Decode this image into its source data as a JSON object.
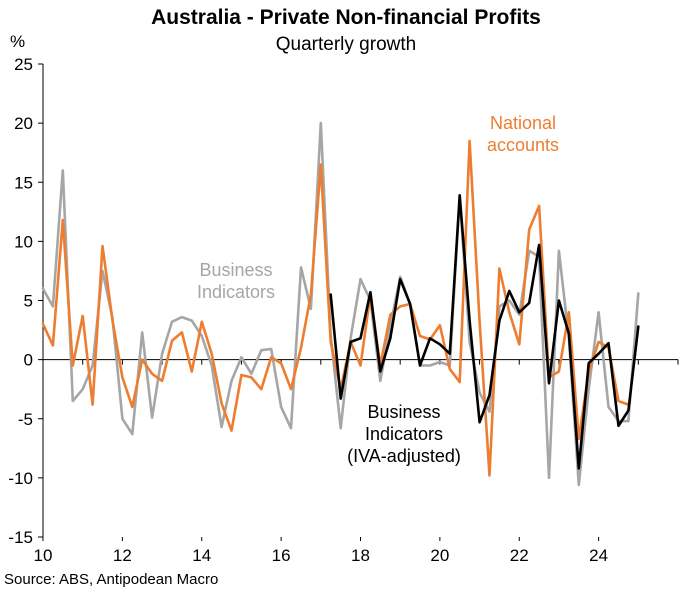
{
  "chart_data": {
    "type": "line",
    "title": "Australia - Private Non-financial Profits",
    "subtitle": "Quarterly growth",
    "ylabel": "%",
    "source": "Source: ABS, Antipodean Macro",
    "ylim": [
      -15,
      25
    ],
    "yticks": [
      -15,
      -10,
      -5,
      0,
      5,
      10,
      15,
      20,
      25
    ],
    "xlim": [
      2010.0,
      2026.0
    ],
    "xticks": [
      2010,
      2012,
      2014,
      2016,
      2018,
      2020,
      2022,
      2024
    ],
    "xtick_labels": [
      "10",
      "12",
      "14",
      "16",
      "18",
      "20",
      "22",
      "24"
    ],
    "grid": false,
    "annotations": [
      {
        "series": "business",
        "lines": [
          "Business",
          "Indicators"
        ],
        "color": "#a6a6a6"
      },
      {
        "series": "national",
        "lines": [
          "National",
          "accounts"
        ],
        "color": "#ed7d31"
      },
      {
        "series": "iva",
        "lines": [
          "Business",
          "Indicators",
          "(IVA-adjusted)"
        ],
        "color": "#000000"
      }
    ],
    "series": [
      {
        "key": "business",
        "color": "#a6a6a6",
        "x": [
          2010.0,
          2010.25,
          2010.5,
          2010.75,
          2011.0,
          2011.25,
          2011.5,
          2011.75,
          2012.0,
          2012.25,
          2012.5,
          2012.75,
          2013.0,
          2013.25,
          2013.5,
          2013.75,
          2014.0,
          2014.25,
          2014.5,
          2014.75,
          2015.0,
          2015.25,
          2015.5,
          2015.75,
          2016.0,
          2016.25,
          2016.5,
          2016.75,
          2017.0,
          2017.25,
          2017.5,
          2017.75,
          2018.0,
          2018.25,
          2018.5,
          2018.75,
          2019.0,
          2019.25,
          2019.5,
          2019.75,
          2020.0,
          2020.25,
          2020.5,
          2020.75,
          2021.0,
          2021.25,
          2021.5,
          2021.75,
          2022.0,
          2022.25,
          2022.5,
          2022.75,
          2023.0,
          2023.25,
          2023.5,
          2023.75,
          2024.0,
          2024.25,
          2024.5,
          2024.75,
          2025.0
        ],
        "y": [
          6.0,
          4.5,
          16.0,
          -3.5,
          -2.5,
          -0.5,
          7.5,
          3.5,
          -5.0,
          -6.3,
          2.3,
          -4.9,
          0.5,
          3.2,
          3.6,
          3.3,
          2.0,
          -0.5,
          -5.7,
          -1.8,
          0.2,
          -1.2,
          0.8,
          0.9,
          -4.0,
          -5.8,
          7.8,
          4.3,
          20.0,
          2.0,
          -5.8,
          1.8,
          6.8,
          5.0,
          -1.8,
          2.8,
          7.0,
          4.7,
          -0.5,
          -0.5,
          -0.2,
          -0.5,
          13.8,
          1.5,
          -2.8,
          -4.4,
          4.5,
          5.0,
          3.8,
          9.2,
          8.7,
          -10.0,
          9.2,
          1.8,
          -10.6,
          -2.5,
          4.0,
          -4.0,
          -5.2,
          -5.2,
          5.6
        ]
      },
      {
        "key": "national",
        "color": "#ed7d31",
        "x": [
          2010.0,
          2010.25,
          2010.5,
          2010.75,
          2011.0,
          2011.25,
          2011.5,
          2011.75,
          2012.0,
          2012.25,
          2012.5,
          2012.75,
          2013.0,
          2013.25,
          2013.5,
          2013.75,
          2014.0,
          2014.25,
          2014.5,
          2014.75,
          2015.0,
          2015.25,
          2015.5,
          2015.75,
          2016.0,
          2016.25,
          2016.5,
          2016.75,
          2017.0,
          2017.25,
          2017.5,
          2017.75,
          2018.0,
          2018.25,
          2018.5,
          2018.75,
          2019.0,
          2019.25,
          2019.5,
          2019.75,
          2020.0,
          2020.25,
          2020.5,
          2020.75,
          2021.0,
          2021.25,
          2021.5,
          2021.75,
          2022.0,
          2022.25,
          2022.5,
          2022.75,
          2023.0,
          2023.25,
          2023.5,
          2023.75,
          2024.0,
          2024.25,
          2024.5,
          2024.75
        ],
        "y": [
          3.0,
          1.2,
          11.8,
          -0.5,
          3.7,
          -3.8,
          9.6,
          3.3,
          -1.5,
          -4.0,
          0.0,
          -1.2,
          -1.8,
          1.6,
          2.3,
          -1.0,
          3.2,
          0.5,
          -3.7,
          -6.0,
          -1.3,
          -1.5,
          -2.5,
          0.2,
          -0.3,
          -2.5,
          1.0,
          5.5,
          16.5,
          1.5,
          -2.5,
          1.5,
          -0.5,
          5.5,
          -0.5,
          3.8,
          4.5,
          4.7,
          2.0,
          1.7,
          2.9,
          -0.8,
          -1.9,
          18.5,
          3.2,
          -9.8,
          7.7,
          4.0,
          1.3,
          11.0,
          13.0,
          -1.5,
          -1.0,
          4.0,
          -6.7,
          -1.0,
          1.5,
          1.0,
          -3.5,
          -3.8
        ]
      },
      {
        "key": "iva",
        "color": "#000000",
        "x": [
          2017.25,
          2017.5,
          2017.75,
          2018.0,
          2018.25,
          2018.5,
          2018.75,
          2019.0,
          2019.25,
          2019.5,
          2019.75,
          2020.0,
          2020.25,
          2020.5,
          2020.75,
          2021.0,
          2021.25,
          2021.5,
          2021.75,
          2022.0,
          2022.25,
          2022.5,
          2022.75,
          2023.0,
          2023.25,
          2023.5,
          2023.75,
          2024.0,
          2024.25,
          2024.5,
          2024.75,
          2025.0
        ],
        "y": [
          5.5,
          -3.3,
          1.5,
          1.8,
          5.7,
          -1.0,
          1.8,
          6.8,
          4.7,
          -0.5,
          1.8,
          1.3,
          0.5,
          13.9,
          3.3,
          -5.3,
          -3.0,
          3.3,
          5.8,
          4.0,
          4.8,
          9.7,
          -2.0,
          5.0,
          2.2,
          -9.2,
          -0.3,
          0.5,
          1.4,
          -5.6,
          -4.3,
          2.8
        ]
      }
    ]
  }
}
